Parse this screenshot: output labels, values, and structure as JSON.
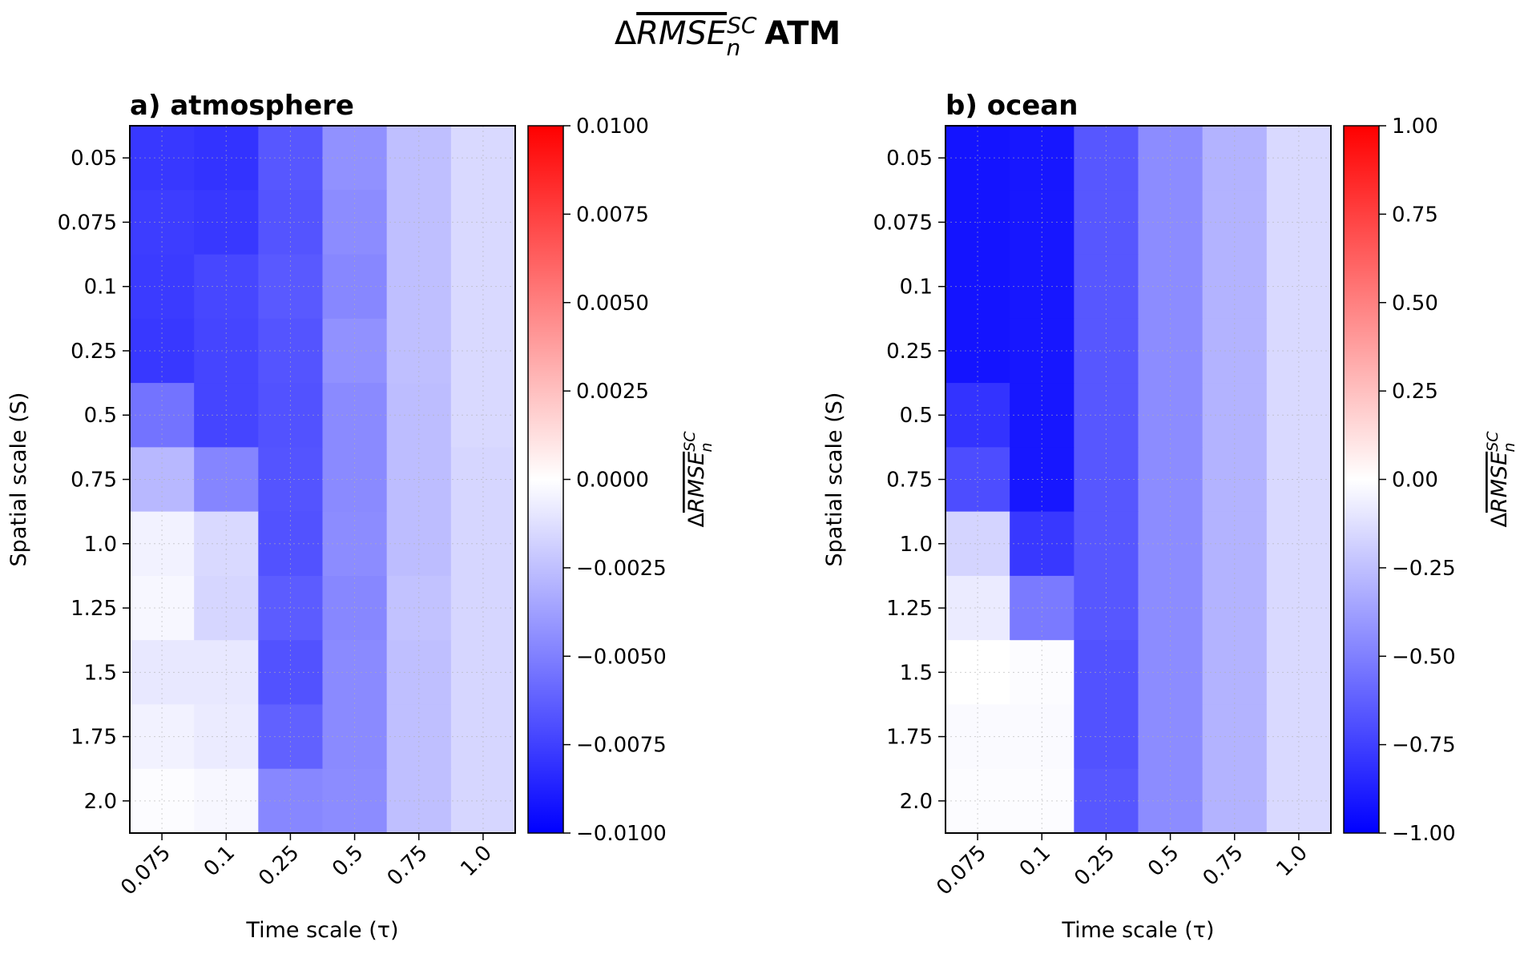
{
  "figure": {
    "title_delta": "Δ",
    "title_var": "RMSE",
    "title_sup": "SC",
    "title_sub": "n",
    "title_suffix": "ATM"
  },
  "chart_data": [
    {
      "type": "heatmap",
      "title": "a) atmosphere",
      "xlabel": "Time scale (τ)",
      "ylabel": "Spatial scale (S)",
      "colorbar_label_delta": "Δ",
      "colorbar_label_var": "RMSE",
      "colorbar_label_sup": "SC",
      "colorbar_label_sub": "n",
      "x_categories": [
        "0.075",
        "0.1",
        "0.25",
        "0.5",
        "0.75",
        "1.0"
      ],
      "y_categories": [
        "0.05",
        "0.075",
        "0.1",
        "0.25",
        "0.5",
        "0.75",
        "1.0",
        "1.25",
        "1.5",
        "1.75",
        "2.0"
      ],
      "vmin": -0.01,
      "vmax": 0.01,
      "colormap": "bwr",
      "colorbar_ticks": [
        "0.0100",
        "0.0075",
        "0.0050",
        "0.0025",
        "0.0000",
        "−0.0025",
        "−0.0050",
        "−0.0075",
        "−0.0100"
      ],
      "grid": "dotted",
      "values": [
        [
          -0.0078,
          -0.008,
          -0.0066,
          -0.0043,
          -0.0025,
          -0.0015
        ],
        [
          -0.0076,
          -0.0078,
          -0.0067,
          -0.0045,
          -0.0025,
          -0.0015
        ],
        [
          -0.0077,
          -0.0072,
          -0.0065,
          -0.0047,
          -0.0025,
          -0.0015
        ],
        [
          -0.0078,
          -0.0073,
          -0.0067,
          -0.0043,
          -0.0025,
          -0.0015
        ],
        [
          -0.0055,
          -0.0073,
          -0.0068,
          -0.0046,
          -0.0026,
          -0.0015
        ],
        [
          -0.0028,
          -0.0048,
          -0.0067,
          -0.0046,
          -0.0026,
          -0.0016
        ],
        [
          -0.0005,
          -0.0015,
          -0.0068,
          -0.0045,
          -0.0026,
          -0.0016
        ],
        [
          -0.0003,
          -0.0016,
          -0.0064,
          -0.0047,
          -0.0024,
          -0.0016
        ],
        [
          -0.0009,
          -0.0009,
          -0.0068,
          -0.0046,
          -0.0025,
          -0.0016
        ],
        [
          -0.0005,
          -0.0008,
          -0.0062,
          -0.0046,
          -0.0025,
          -0.0016
        ],
        [
          -0.0001,
          -0.0003,
          -0.0047,
          -0.0045,
          -0.0025,
          -0.0016
        ]
      ]
    },
    {
      "type": "heatmap",
      "title": "b) ocean",
      "xlabel": "Time scale (τ)",
      "ylabel": "Spatial scale (S)",
      "colorbar_label_delta": "Δ",
      "colorbar_label_var": "RMSE",
      "colorbar_label_sup": "SC",
      "colorbar_label_sub": "n",
      "x_categories": [
        "0.075",
        "0.1",
        "0.25",
        "0.5",
        "0.75",
        "1.0"
      ],
      "y_categories": [
        "0.05",
        "0.075",
        "0.1",
        "0.25",
        "0.5",
        "0.75",
        "1.0",
        "1.25",
        "1.5",
        "1.75",
        "2.0"
      ],
      "vmin": -1.0,
      "vmax": 1.0,
      "colormap": "bwr",
      "colorbar_ticks": [
        "1.00",
        "0.75",
        "0.50",
        "0.25",
        "0.00",
        "−0.25",
        "−0.50",
        "−0.75",
        "−1.00"
      ],
      "grid": "dotted",
      "values": [
        [
          -0.92,
          -0.91,
          -0.66,
          -0.45,
          -0.3,
          -0.15
        ],
        [
          -0.92,
          -0.91,
          -0.66,
          -0.45,
          -0.3,
          -0.15
        ],
        [
          -0.92,
          -0.91,
          -0.66,
          -0.45,
          -0.3,
          -0.15
        ],
        [
          -0.92,
          -0.91,
          -0.66,
          -0.45,
          -0.3,
          -0.15
        ],
        [
          -0.8,
          -0.91,
          -0.66,
          -0.45,
          -0.3,
          -0.15
        ],
        [
          -0.7,
          -0.91,
          -0.66,
          -0.45,
          -0.3,
          -0.15
        ],
        [
          -0.17,
          -0.78,
          -0.66,
          -0.45,
          -0.3,
          -0.15
        ],
        [
          -0.08,
          -0.52,
          -0.66,
          -0.45,
          -0.3,
          -0.15
        ],
        [
          0.0,
          -0.01,
          -0.68,
          -0.45,
          -0.3,
          -0.15
        ],
        [
          -0.02,
          -0.02,
          -0.68,
          -0.45,
          -0.3,
          -0.15
        ],
        [
          -0.01,
          -0.01,
          -0.66,
          -0.45,
          -0.3,
          -0.15
        ]
      ]
    }
  ]
}
